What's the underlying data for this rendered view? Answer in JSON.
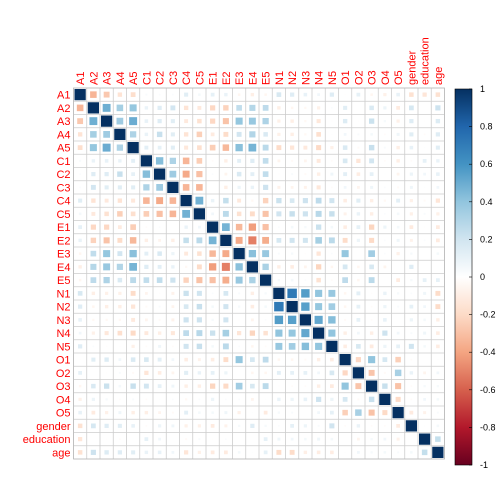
{
  "chart_data": {
    "type": "heatmap",
    "variables": [
      "A1",
      "A2",
      "A3",
      "A4",
      "A5",
      "C1",
      "C2",
      "C3",
      "C4",
      "C5",
      "E1",
      "E2",
      "E3",
      "E4",
      "E5",
      "N1",
      "N2",
      "N3",
      "N4",
      "N5",
      "O1",
      "O2",
      "O3",
      "O4",
      "O5",
      "gender",
      "education",
      "age"
    ],
    "value_range": [
      -1,
      1
    ],
    "colorbar_ticks": [
      "1",
      "0.8",
      "0.6",
      "0.4",
      "0.2",
      "0",
      "-0.2",
      "-0.4",
      "-0.6",
      "-0.8",
      "-1"
    ],
    "colorbar_tick_values": [
      1,
      0.8,
      0.6,
      0.4,
      0.2,
      0,
      -0.2,
      -0.4,
      -0.6,
      -0.8,
      -1
    ],
    "label_color": "#ff0000",
    "grid": true,
    "legend_placement": "right",
    "colors": {
      "negative": "#67001f",
      "zero": "#ffffff",
      "positive": "#053061"
    },
    "matrix": [
      [
        1.0,
        -0.34,
        -0.27,
        -0.15,
        -0.18,
        0.03,
        0.02,
        0.02,
        0.13,
        0.05,
        0.11,
        0.09,
        -0.05,
        -0.09,
        -0.05,
        0.17,
        0.14,
        0.1,
        0.06,
        0.14,
        -0.01,
        0.11,
        -0.05,
        -0.08,
        0.1,
        -0.16,
        -0.14,
        -0.16
      ],
      [
        -0.34,
        1.0,
        0.49,
        0.34,
        0.39,
        0.09,
        0.14,
        0.19,
        -0.15,
        -0.12,
        -0.21,
        -0.23,
        0.25,
        0.29,
        0.26,
        -0.09,
        -0.05,
        -0.04,
        -0.08,
        0.02,
        0.13,
        0.0,
        0.16,
        0.08,
        -0.11,
        0.18,
        0.0,
        0.21
      ],
      [
        -0.27,
        0.49,
        1.0,
        0.36,
        0.5,
        0.1,
        0.14,
        0.13,
        -0.12,
        -0.16,
        -0.21,
        -0.29,
        0.39,
        0.38,
        0.31,
        -0.08,
        -0.09,
        -0.04,
        -0.13,
        -0.01,
        0.15,
        -0.01,
        0.22,
        0.04,
        -0.08,
        0.14,
        -0.01,
        0.15
      ],
      [
        -0.15,
        0.34,
        0.36,
        1.0,
        0.31,
        0.09,
        0.23,
        0.13,
        -0.15,
        -0.24,
        -0.11,
        -0.19,
        0.19,
        0.3,
        0.16,
        -0.08,
        -0.09,
        -0.04,
        -0.17,
        0.01,
        0.06,
        0.03,
        0.05,
        -0.02,
        0.07,
        0.13,
        -0.02,
        0.14
      ],
      [
        -0.18,
        0.39,
        0.5,
        0.31,
        1.0,
        0.12,
        0.11,
        0.13,
        -0.13,
        -0.17,
        -0.25,
        -0.33,
        0.42,
        0.47,
        0.27,
        -0.19,
        -0.14,
        -0.12,
        -0.2,
        -0.08,
        0.16,
        -0.03,
        0.23,
        0.03,
        -0.09,
        0.1,
        0.01,
        0.13
      ],
      [
        0.03,
        0.09,
        0.1,
        0.09,
        0.12,
        1.0,
        0.43,
        0.31,
        -0.34,
        -0.25,
        -0.02,
        -0.09,
        0.12,
        0.14,
        0.25,
        -0.06,
        -0.03,
        -0.06,
        -0.12,
        -0.02,
        0.17,
        -0.14,
        0.19,
        -0.02,
        -0.09,
        -0.02,
        0.11,
        0.09
      ],
      [
        0.02,
        0.14,
        0.14,
        0.23,
        0.11,
        0.43,
        1.0,
        0.36,
        -0.38,
        -0.3,
        0.02,
        -0.06,
        0.16,
        0.12,
        0.25,
        -0.01,
        0.03,
        -0.03,
        -0.09,
        0.07,
        0.12,
        -0.1,
        0.11,
        0.01,
        -0.06,
        0.08,
        0.06,
        0.1
      ],
      [
        0.02,
        0.19,
        0.13,
        0.13,
        0.13,
        0.31,
        0.36,
        1.0,
        -0.34,
        -0.34,
        0.0,
        -0.09,
        0.08,
        0.09,
        0.21,
        -0.07,
        -0.06,
        -0.07,
        -0.13,
        -0.02,
        0.06,
        -0.06,
        0.07,
        0.02,
        -0.03,
        0.07,
        0.01,
        0.06
      ],
      [
        0.13,
        -0.15,
        -0.12,
        -0.15,
        -0.13,
        -0.34,
        -0.38,
        -0.34,
        1.0,
        0.48,
        0.09,
        0.24,
        -0.12,
        -0.04,
        -0.23,
        0.22,
        0.17,
        0.21,
        0.26,
        0.2,
        -0.1,
        0.13,
        -0.09,
        -0.04,
        0.12,
        -0.08,
        -0.03,
        -0.14
      ],
      [
        0.05,
        -0.12,
        -0.16,
        -0.24,
        -0.17,
        -0.25,
        -0.3,
        -0.34,
        0.48,
        1.0,
        0.06,
        0.27,
        -0.16,
        -0.19,
        -0.29,
        0.2,
        0.23,
        0.21,
        0.28,
        0.23,
        -0.07,
        0.09,
        -0.09,
        0.02,
        0.05,
        -0.08,
        0.03,
        -0.08
      ],
      [
        0.11,
        -0.21,
        -0.21,
        -0.11,
        -0.25,
        -0.02,
        0.02,
        0.0,
        0.09,
        0.06,
        1.0,
        0.47,
        -0.33,
        -0.42,
        -0.3,
        0.02,
        0.05,
        0.04,
        0.22,
        0.05,
        -0.1,
        0.11,
        -0.22,
        0.08,
        0.05,
        -0.11,
        -0.01,
        -0.11
      ],
      [
        0.09,
        -0.23,
        -0.29,
        -0.19,
        -0.33,
        -0.09,
        -0.06,
        -0.09,
        0.24,
        0.27,
        0.47,
        1.0,
        -0.38,
        -0.51,
        -0.37,
        0.18,
        0.2,
        0.2,
        0.34,
        0.27,
        -0.19,
        0.08,
        -0.2,
        0.02,
        0.07,
        -0.07,
        0.02,
        -0.11
      ],
      [
        -0.05,
        0.25,
        0.39,
        0.19,
        0.42,
        0.12,
        0.16,
        0.08,
        -0.12,
        -0.16,
        -0.33,
        -0.38,
        1.0,
        0.42,
        0.38,
        0.03,
        0.04,
        -0.01,
        -0.14,
        0.02,
        0.39,
        0.0,
        0.35,
        0.02,
        -0.08,
        0.04,
        0.0,
        0.05
      ],
      [
        -0.09,
        0.29,
        0.38,
        0.3,
        0.47,
        0.14,
        0.12,
        0.09,
        -0.04,
        -0.19,
        -0.42,
        -0.51,
        0.42,
        1.0,
        0.32,
        -0.09,
        -0.1,
        -0.06,
        -0.22,
        -0.05,
        0.18,
        -0.05,
        0.17,
        -0.06,
        0.01,
        0.14,
        0.0,
        0.01
      ],
      [
        -0.05,
        0.26,
        0.31,
        0.16,
        0.27,
        0.25,
        0.25,
        0.21,
        -0.23,
        -0.29,
        -0.3,
        -0.37,
        0.38,
        0.32,
        1.0,
        0.04,
        0.05,
        0.02,
        -0.16,
        -0.02,
        0.26,
        -0.05,
        0.27,
        0.01,
        -0.11,
        0.04,
        0.11,
        0.11
      ],
      [
        0.17,
        -0.09,
        -0.08,
        -0.08,
        -0.19,
        -0.06,
        -0.01,
        -0.07,
        0.22,
        0.2,
        0.02,
        0.18,
        0.03,
        -0.09,
        0.04,
        1.0,
        0.71,
        0.56,
        0.4,
        0.38,
        -0.05,
        0.12,
        -0.01,
        0.09,
        0.04,
        0.02,
        0.07,
        -0.19
      ],
      [
        0.14,
        -0.05,
        -0.09,
        -0.09,
        -0.14,
        -0.03,
        0.03,
        -0.06,
        0.17,
        0.23,
        0.05,
        0.2,
        0.04,
        -0.1,
        0.05,
        0.71,
        1.0,
        0.55,
        0.39,
        0.35,
        -0.05,
        0.11,
        -0.02,
        0.08,
        0.03,
        0.11,
        0.06,
        -0.19
      ],
      [
        0.1,
        -0.04,
        -0.04,
        -0.04,
        -0.12,
        -0.06,
        -0.03,
        -0.07,
        0.21,
        0.21,
        0.04,
        0.2,
        -0.01,
        -0.06,
        0.02,
        0.56,
        0.55,
        1.0,
        0.52,
        0.43,
        -0.03,
        0.11,
        -0.02,
        0.1,
        0.0,
        0.08,
        0.05,
        -0.09
      ],
      [
        0.06,
        -0.08,
        -0.13,
        -0.17,
        -0.2,
        -0.12,
        -0.09,
        -0.13,
        0.26,
        0.28,
        0.22,
        0.34,
        -0.14,
        -0.22,
        -0.16,
        0.4,
        0.39,
        0.52,
        1.0,
        0.4,
        -0.09,
        0.06,
        -0.09,
        0.21,
        0.06,
        0.03,
        0.07,
        -0.1
      ],
      [
        0.14,
        0.02,
        -0.01,
        0.01,
        -0.08,
        -0.02,
        0.07,
        -0.02,
        0.2,
        0.23,
        0.05,
        0.27,
        0.02,
        -0.05,
        -0.02,
        0.38,
        0.35,
        0.43,
        0.4,
        1.0,
        -0.1,
        0.17,
        -0.11,
        0.08,
        0.11,
        0.2,
        0.05,
        -0.1
      ],
      [
        -0.01,
        0.13,
        0.15,
        0.06,
        0.16,
        0.17,
        0.12,
        0.06,
        -0.1,
        -0.07,
        -0.1,
        -0.19,
        0.39,
        0.18,
        0.26,
        -0.05,
        -0.05,
        -0.03,
        -0.09,
        -0.1,
        1.0,
        -0.21,
        0.4,
        0.18,
        -0.24,
        -0.02,
        0.0,
        0.01
      ],
      [
        0.11,
        0.0,
        -0.01,
        0.03,
        -0.03,
        -0.14,
        -0.1,
        -0.06,
        0.13,
        0.09,
        0.11,
        0.08,
        0.0,
        -0.05,
        -0.05,
        0.12,
        0.11,
        0.11,
        0.06,
        0.17,
        -0.21,
        1.0,
        -0.28,
        -0.03,
        0.33,
        0.09,
        -0.06,
        0.06
      ],
      [
        -0.05,
        0.16,
        0.22,
        0.05,
        0.23,
        0.19,
        0.11,
        0.07,
        -0.09,
        -0.09,
        -0.22,
        -0.2,
        0.35,
        0.17,
        0.27,
        -0.01,
        -0.02,
        -0.02,
        -0.09,
        -0.11,
        0.4,
        -0.28,
        1.0,
        0.23,
        -0.29,
        -0.02,
        0.04,
        0.04
      ],
      [
        -0.08,
        0.08,
        0.04,
        -0.02,
        0.03,
        -0.02,
        0.01,
        0.02,
        -0.04,
        0.02,
        0.08,
        0.02,
        0.02,
        -0.06,
        0.01,
        0.09,
        0.08,
        0.1,
        0.21,
        0.08,
        0.18,
        -0.03,
        0.23,
        1.0,
        -0.2,
        -0.02,
        0.06,
        0.05
      ],
      [
        0.1,
        -0.11,
        -0.08,
        0.07,
        -0.09,
        -0.09,
        -0.06,
        -0.03,
        0.12,
        0.05,
        0.05,
        0.07,
        -0.08,
        0.01,
        -0.11,
        0.04,
        0.03,
        0.0,
        0.06,
        0.11,
        -0.24,
        0.33,
        -0.29,
        -0.2,
        1.0,
        -0.11,
        -0.07,
        0.03
      ],
      [
        -0.16,
        0.18,
        0.14,
        0.13,
        0.1,
        -0.02,
        0.08,
        0.07,
        -0.08,
        -0.08,
        -0.11,
        -0.07,
        0.04,
        0.14,
        0.04,
        0.02,
        0.11,
        0.08,
        0.03,
        0.2,
        -0.02,
        0.09,
        -0.02,
        -0.02,
        -0.11,
        1.0,
        0.01,
        0.05
      ],
      [
        -0.14,
        0.0,
        -0.01,
        -0.02,
        0.01,
        0.11,
        0.06,
        0.01,
        -0.03,
        0.03,
        -0.01,
        0.02,
        0.0,
        0.0,
        0.11,
        0.07,
        0.06,
        0.05,
        0.07,
        0.05,
        0.0,
        -0.06,
        0.04,
        0.06,
        -0.07,
        0.01,
        1.0,
        0.24
      ],
      [
        -0.16,
        0.21,
        0.15,
        0.14,
        0.13,
        0.09,
        0.1,
        0.06,
        -0.14,
        -0.08,
        -0.11,
        -0.11,
        0.05,
        0.01,
        0.11,
        -0.19,
        -0.19,
        -0.09,
        -0.1,
        -0.1,
        0.01,
        0.06,
        0.04,
        0.05,
        0.03,
        0.05,
        0.24,
        1.0
      ]
    ]
  }
}
